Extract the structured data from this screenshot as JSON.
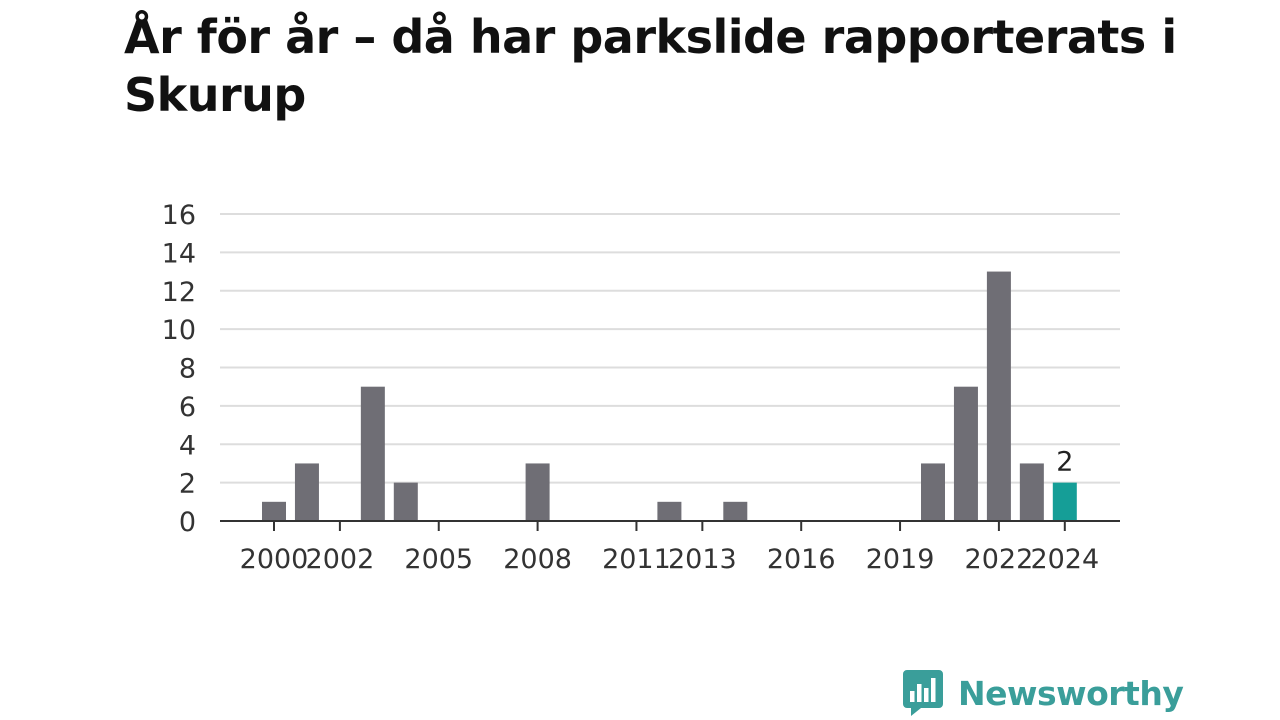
{
  "title": "År för år – då har parkslide rapporterats i Skurup",
  "logo": {
    "text": "Newsworthy",
    "icon": "newsworthy-chart-bubble-icon",
    "color": "#3a9e9a"
  },
  "chart_data": {
    "type": "bar",
    "title": "År för år – då har parkslide rapporterats i Skurup",
    "xlabel": "",
    "ylabel": "",
    "categories": [
      "2000",
      "2001",
      "2002",
      "2003",
      "2004",
      "2005",
      "2006",
      "2007",
      "2008",
      "2009",
      "2010",
      "2011",
      "2012",
      "2013",
      "2014",
      "2015",
      "2016",
      "2017",
      "2018",
      "2019",
      "2020",
      "2021",
      "2022",
      "2023",
      "2024"
    ],
    "values": [
      1,
      3,
      0,
      7,
      2,
      0,
      0,
      0,
      3,
      0,
      0,
      0,
      1,
      0,
      1,
      0,
      0,
      0,
      0,
      0,
      3,
      7,
      13,
      3,
      2
    ],
    "x_tick_labels": [
      "2000",
      "2002",
      "2005",
      "2008",
      "2011",
      "2013",
      "2016",
      "2019",
      "2022",
      "2024"
    ],
    "y_ticks": [
      0,
      2,
      4,
      6,
      8,
      10,
      12,
      14,
      16
    ],
    "ylim": [
      0,
      16
    ],
    "grid": true,
    "bar_color": "#6f6e75",
    "highlight": {
      "category": "2024",
      "color": "#159e97",
      "label": "2"
    },
    "axis_color": "#333333",
    "grid_color": "#dddddd"
  }
}
